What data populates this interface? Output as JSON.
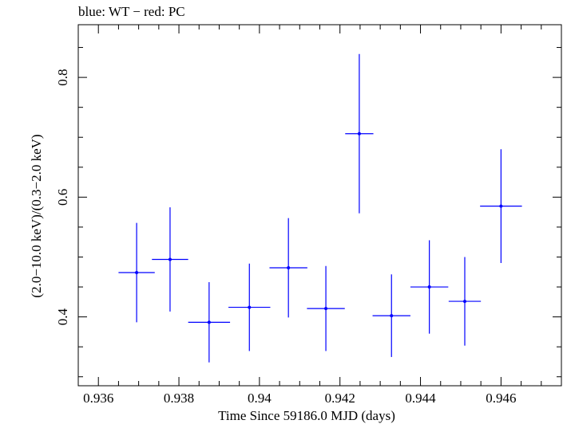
{
  "header_text": "blue: WT − red: PC",
  "chart_data": {
    "type": "scatter",
    "title": "",
    "xlabel": "Time Since 59186.0 MJD (days)",
    "ylabel": "(2.0−10.0 keV)/(0.3−2.0 keV)",
    "xlim": [
      0.9355,
      0.9475
    ],
    "ylim": [
      0.285,
      0.888
    ],
    "x_ticks": [
      0.936,
      0.938,
      0.94,
      0.942,
      0.944,
      0.946
    ],
    "x_tick_labels": [
      "0.936",
      "0.938",
      "0.94",
      "0.942",
      "0.944",
      "0.946"
    ],
    "y_ticks": [
      0.4,
      0.6,
      0.8
    ],
    "y_tick_labels": [
      "0.4",
      "0.6",
      "0.8"
    ],
    "grid": false,
    "series": [
      {
        "color": "#0000ff",
        "points": [
          {
            "x": 0.93695,
            "y": 0.474,
            "xerr": 0.00045,
            "yerr_low": 0.083,
            "yerr_high": 0.083
          },
          {
            "x": 0.93778,
            "y": 0.496,
            "xerr": 0.00045,
            "yerr_low": 0.087,
            "yerr_high": 0.087
          },
          {
            "x": 0.93875,
            "y": 0.391,
            "xerr": 0.00052,
            "yerr_low": 0.067,
            "yerr_high": 0.067
          },
          {
            "x": 0.93975,
            "y": 0.416,
            "xerr": 0.00052,
            "yerr_low": 0.073,
            "yerr_high": 0.073
          },
          {
            "x": 0.94072,
            "y": 0.482,
            "xerr": 0.00047,
            "yerr_low": 0.083,
            "yerr_high": 0.083
          },
          {
            "x": 0.94165,
            "y": 0.414,
            "xerr": 0.00047,
            "yerr_low": 0.071,
            "yerr_high": 0.071
          },
          {
            "x": 0.94248,
            "y": 0.706,
            "xerr": 0.00035,
            "yerr_low": 0.133,
            "yerr_high": 0.133
          },
          {
            "x": 0.94328,
            "y": 0.402,
            "xerr": 0.00047,
            "yerr_low": 0.069,
            "yerr_high": 0.069
          },
          {
            "x": 0.94422,
            "y": 0.45,
            "xerr": 0.00047,
            "yerr_low": 0.078,
            "yerr_high": 0.078
          },
          {
            "x": 0.9451,
            "y": 0.426,
            "xerr": 0.0004,
            "yerr_low": 0.074,
            "yerr_high": 0.074
          },
          {
            "x": 0.946,
            "y": 0.585,
            "xerr": 0.00052,
            "yerr_low": 0.095,
            "yerr_high": 0.095
          }
        ]
      }
    ]
  }
}
